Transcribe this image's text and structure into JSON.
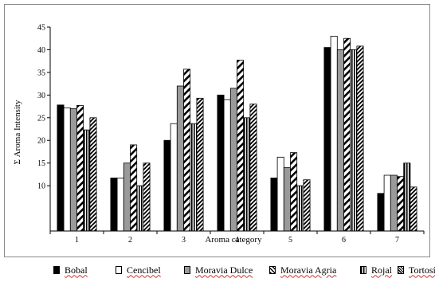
{
  "chart_data": {
    "type": "bar",
    "categories": [
      "1",
      "2",
      "3",
      "4",
      "5",
      "6",
      "7"
    ],
    "xlabel": "Aroma category",
    "ylabel": "Σ Aroma Intensity",
    "ylim": [
      0,
      45
    ],
    "yticks": [
      10,
      15,
      20,
      25,
      30,
      35,
      40,
      45
    ],
    "grid": false,
    "legend_position": "bottom",
    "series": [
      {
        "name": "Bobal",
        "pattern": "solid-black",
        "values": [
          27.8,
          11.7,
          20.0,
          30.0,
          11.7,
          40.5,
          8.3
        ]
      },
      {
        "name": "Cencibel",
        "pattern": "white",
        "values": [
          27.2,
          11.7,
          23.7,
          29.0,
          16.3,
          43.0,
          12.3
        ]
      },
      {
        "name": "Moravia Dulce",
        "pattern": "gray",
        "values": [
          27.0,
          15.0,
          32.0,
          31.5,
          14.0,
          40.0,
          12.3
        ]
      },
      {
        "name": "Moravia Agria",
        "pattern": "diagonal-wide",
        "values": [
          27.7,
          19.0,
          35.7,
          37.7,
          17.3,
          42.5,
          12.0
        ]
      },
      {
        "name": "Rojal",
        "pattern": "vertical-stripes",
        "values": [
          22.3,
          10.0,
          23.7,
          25.0,
          10.0,
          40.0,
          15.0
        ]
      },
      {
        "name": "Tortosí",
        "pattern": "diagonal-dense",
        "values": [
          25.0,
          15.0,
          29.3,
          28.0,
          11.3,
          40.8,
          9.7
        ]
      }
    ]
  }
}
